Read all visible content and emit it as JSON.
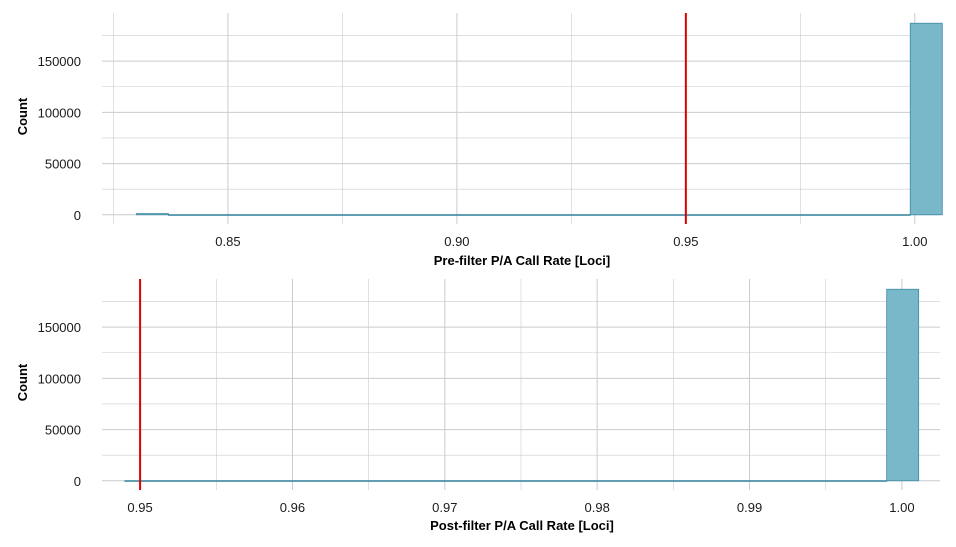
{
  "chart_data": [
    {
      "type": "bar",
      "title": "",
      "xlabel": "Pre-filter P/A Call Rate [Loci]",
      "ylabel": "Count",
      "xlim": [
        0.8225,
        1.0055
      ],
      "ylim": [
        -9000,
        197000
      ],
      "xticks": [
        "0.85",
        "0.90",
        "0.95",
        "1.00"
      ],
      "xtick_values": [
        0.85,
        0.9,
        0.95,
        1.0
      ],
      "yticks": [
        "0",
        "50000",
        "100000",
        "150000"
      ],
      "ytick_values": [
        0,
        50000,
        100000,
        150000
      ],
      "bins": [
        {
          "x0": 0.83,
          "x1": 0.837,
          "count": 1200
        },
        {
          "x0": 0.837,
          "x1": 0.999,
          "count": 150
        },
        {
          "x0": 0.999,
          "x1": 1.006,
          "count": 187000
        }
      ],
      "vline": 0.95,
      "grid": true,
      "colors": {
        "fill": "#79b8c8",
        "stroke": "#3f8aa3",
        "vline": "#e00000",
        "grid": "#c8ccd0"
      }
    },
    {
      "type": "bar",
      "title": "",
      "xlabel": "Post-filter P/A Call Rate [Loci]",
      "ylabel": "Count",
      "xlim": [
        0.9475,
        1.0025
      ],
      "ylim": [
        -9000,
        197000
      ],
      "xticks": [
        "0.95",
        "0.96",
        "0.97",
        "0.98",
        "0.99",
        "1.00"
      ],
      "xtick_values": [
        0.95,
        0.96,
        0.97,
        0.98,
        0.99,
        1.0
      ],
      "yticks": [
        "0",
        "50000",
        "100000",
        "150000"
      ],
      "ytick_values": [
        0,
        50000,
        100000,
        150000
      ],
      "bins": [
        {
          "x0": 0.949,
          "x1": 0.999,
          "count": 150
        },
        {
          "x0": 0.999,
          "x1": 1.0011,
          "count": 187000
        }
      ],
      "vline": 0.95,
      "grid": true,
      "colors": {
        "fill": "#79b8c8",
        "stroke": "#3f8aa3",
        "vline": "#e00000",
        "grid": "#c8ccd0"
      }
    }
  ]
}
